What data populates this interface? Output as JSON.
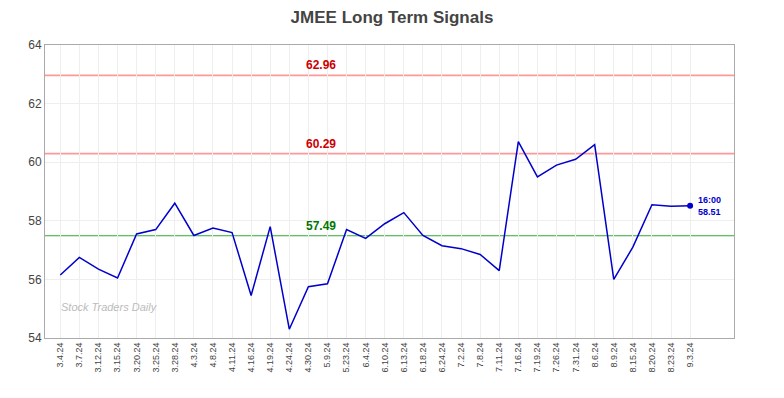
{
  "chart_data": {
    "type": "line",
    "title": "JMEE Long Term Signals",
    "categories": [
      "3.4.24",
      "3.7.24",
      "3.12.24",
      "3.15.24",
      "3.20.24",
      "3.25.24",
      "3.28.24",
      "4.3.24",
      "4.8.24",
      "4.11.24",
      "4.16.24",
      "4.19.24",
      "4.24.24",
      "4.30.24",
      "5.9.24",
      "5.23.24",
      "6.4.24",
      "6.10.24",
      "6.13.24",
      "6.18.24",
      "6.24.24",
      "7.2.24",
      "7.8.24",
      "7.11.24",
      "7.16.24",
      "7.19.24",
      "7.26.24",
      "7.31.24",
      "8.6.24",
      "8.9.24",
      "8.15.24",
      "8.20.24",
      "8.23.24",
      "9.3.24"
    ],
    "values": [
      56.15,
      56.75,
      56.35,
      56.05,
      57.55,
      57.7,
      58.6,
      57.5,
      57.75,
      57.6,
      55.45,
      57.8,
      54.3,
      55.75,
      55.85,
      57.7,
      57.4,
      57.9,
      58.28,
      57.5,
      57.15,
      57.05,
      56.85,
      56.3,
      60.7,
      59.5,
      59.9,
      60.1,
      60.6,
      56.0,
      57.1,
      58.55,
      58.5,
      58.51
    ],
    "color": "#0000cc",
    "ylim": [
      54,
      64
    ],
    "yticks": [
      54,
      56,
      58,
      60,
      62,
      64
    ],
    "grid": true,
    "hlines": [
      {
        "value": 57.49,
        "label": "57.49",
        "color": "#33aa33",
        "label_color": "#007700"
      },
      {
        "value": 60.29,
        "label": "60.29",
        "color": "#ff9999",
        "label_color": "#cc0000"
      },
      {
        "value": 62.96,
        "label": "62.96",
        "color": "#ff9999",
        "label_color": "#cc0000"
      }
    ],
    "annotations": [
      {
        "lines": [
          "16:00",
          "58.51"
        ]
      },
      {
        "text": "Stock Traders Daily"
      }
    ]
  }
}
